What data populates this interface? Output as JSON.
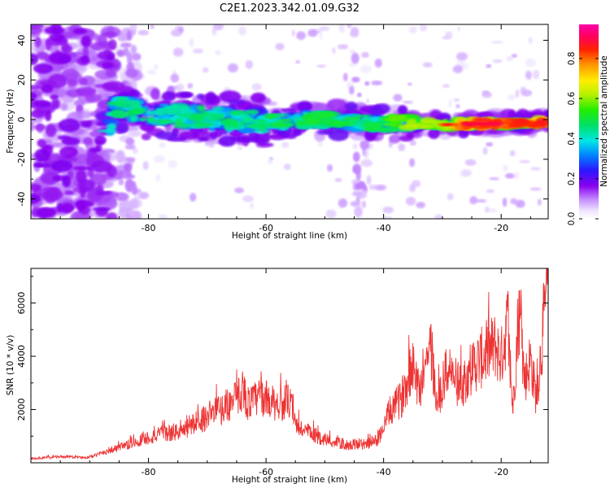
{
  "title": "C2E1.2023.342.01.09.G32",
  "chart_data": [
    {
      "type": "heatmap",
      "xlabel": "Height of straight line (km)",
      "ylabel": "Frequency (Hz)",
      "xlim": [
        -100,
        -12
      ],
      "ylim": [
        -50,
        48
      ],
      "xticks": [
        -80,
        -60,
        -40,
        -20
      ],
      "yticks": [
        -40,
        -20,
        0,
        20,
        40
      ],
      "colorbar": {
        "label": "Normalized spectral amplitude",
        "range": [
          0,
          0.97
        ],
        "ticks": [
          0.0,
          0.2,
          0.4,
          0.6,
          0.8
        ],
        "colormap": "rainbow (white-violet-blue-cyan-green-yellow-red-magenta)"
      },
      "center_frequency_trend": [
        {
          "x": -86,
          "y": 7
        },
        {
          "x": -80,
          "y": 3
        },
        {
          "x": -70,
          "y": 1
        },
        {
          "x": -60,
          "y": -1
        },
        {
          "x": -50,
          "y": 0
        },
        {
          "x": -40,
          "y": -2
        },
        {
          "x": -30,
          "y": -2.5
        },
        {
          "x": -20,
          "y": -2
        },
        {
          "x": -12,
          "y": -1.5
        }
      ],
      "grid": false
    },
    {
      "type": "line",
      "xlabel": "Height of straight line (km)",
      "ylabel": "SNR (10 * v/v)",
      "xlim": [
        -100,
        -12
      ],
      "ylim": [
        0,
        7300
      ],
      "xticks": [
        -80,
        -60,
        -40,
        -20
      ],
      "yticks": [
        2000,
        4000,
        6000
      ],
      "color": "#ee3333",
      "series": [
        {
          "x": [
            -100,
            -95,
            -90,
            -87,
            -85,
            -83,
            -80,
            -77,
            -74,
            -72,
            -70,
            -67,
            -65,
            -64,
            -63,
            -61,
            -58,
            -56,
            -55,
            -52,
            -49,
            -46,
            -43,
            -41,
            -39,
            -37,
            -35,
            -34,
            -32,
            -31,
            -29,
            -27,
            -25,
            -23,
            -21,
            -20,
            -19,
            -18,
            -17,
            -16,
            -15,
            -14,
            -13,
            -12
          ],
          "values": [
            150,
            230,
            200,
            450,
            550,
            700,
            950,
            1100,
            1200,
            1500,
            1750,
            2100,
            2400,
            2800,
            2200,
            2500,
            2200,
            2300,
            1400,
            1050,
            800,
            650,
            700,
            850,
            1900,
            2400,
            3800,
            2700,
            4400,
            2200,
            3600,
            2800,
            3600,
            4000,
            4400,
            3900,
            5200,
            2000,
            5800,
            3100,
            3900,
            2400,
            4700,
            7000
          ]
        }
      ],
      "grid": false
    }
  ]
}
